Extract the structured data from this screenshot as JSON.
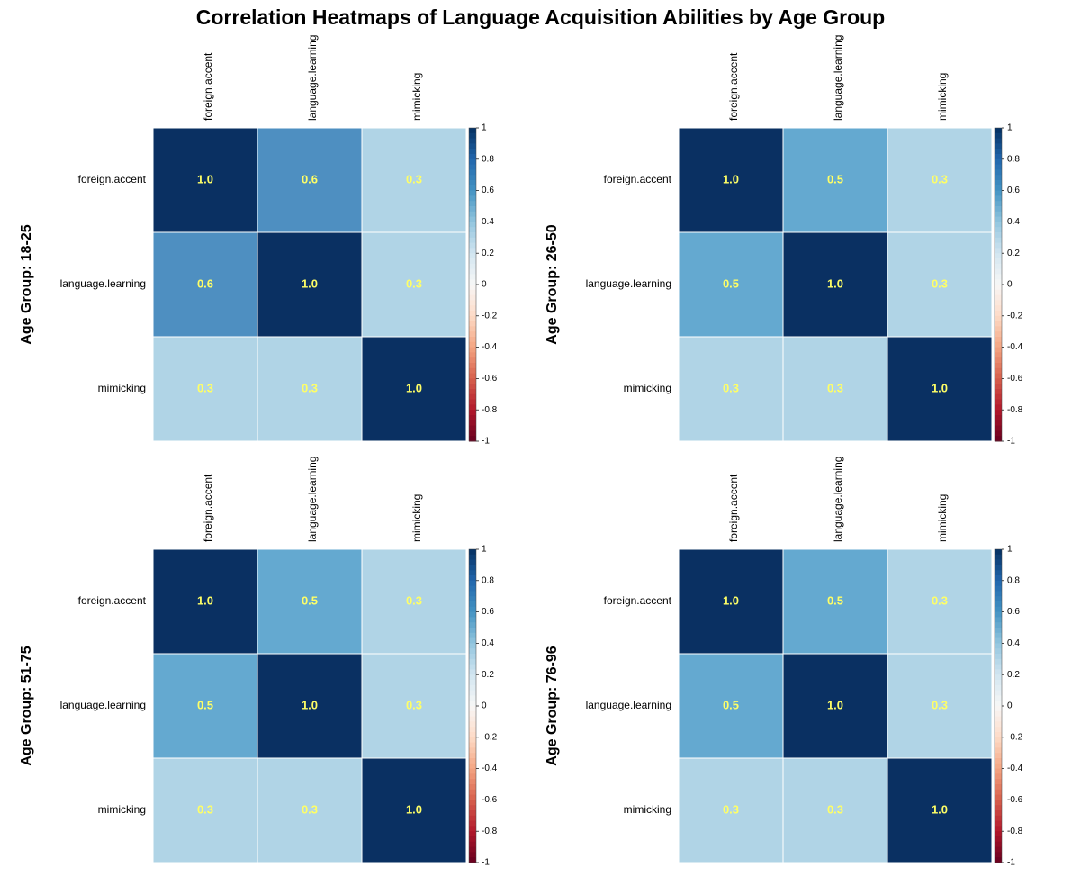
{
  "page": {
    "title": "Correlation Heatmaps of Language Acquisition Abilities by Age Group"
  },
  "colors": {
    "cell_1_0": "#0a3062",
    "cell_0_6": "#4e8fc1",
    "cell_0_5": "#64a9d0",
    "cell_0_3": "#b0d4e6",
    "value_text_high": "#ffff66",
    "value_text_low": "#ffff66",
    "grid_line": "#ffffff",
    "scale_stops": [
      "#67001f",
      "#b2182b",
      "#d6604d",
      "#f4a582",
      "#fddbc7",
      "#f7f7f7",
      "#d1e5f0",
      "#92c5de",
      "#4393c3",
      "#2166ac",
      "#053061"
    ]
  },
  "chart_data": [
    {
      "type": "heatmap",
      "title": "Age Group: 18-25",
      "variables": [
        "foreign.accent",
        "language.learning",
        "mimicking"
      ],
      "matrix": [
        [
          1.0,
          0.6,
          0.3
        ],
        [
          0.6,
          1.0,
          0.3
        ],
        [
          0.3,
          0.3,
          1.0
        ]
      ],
      "value_labels": [
        [
          "1.0",
          "0.6",
          "0.3"
        ],
        [
          "0.6",
          "1.0",
          "0.3"
        ],
        [
          "0.3",
          "0.3",
          "1.0"
        ]
      ],
      "colorbar_ticks": [
        "1",
        "0.8",
        "0.6",
        "0.4",
        "0.2",
        "0",
        "-0.2",
        "-0.4",
        "-0.6",
        "-0.8",
        "-1"
      ],
      "scale_range": [
        -1,
        1
      ]
    },
    {
      "type": "heatmap",
      "title": "Age Group: 26-50",
      "variables": [
        "foreign.accent",
        "language.learning",
        "mimicking"
      ],
      "matrix": [
        [
          1.0,
          0.5,
          0.3
        ],
        [
          0.5,
          1.0,
          0.3
        ],
        [
          0.3,
          0.3,
          1.0
        ]
      ],
      "value_labels": [
        [
          "1.0",
          "0.5",
          "0.3"
        ],
        [
          "0.5",
          "1.0",
          "0.3"
        ],
        [
          "0.3",
          "0.3",
          "1.0"
        ]
      ],
      "colorbar_ticks": [
        "1",
        "0.8",
        "0.6",
        "0.4",
        "0.2",
        "0",
        "-0.2",
        "-0.4",
        "-0.6",
        "-0.8",
        "-1"
      ],
      "scale_range": [
        -1,
        1
      ]
    },
    {
      "type": "heatmap",
      "title": "Age Group: 51-75",
      "variables": [
        "foreign.accent",
        "language.learning",
        "mimicking"
      ],
      "matrix": [
        [
          1.0,
          0.5,
          0.3
        ],
        [
          0.5,
          1.0,
          0.3
        ],
        [
          0.3,
          0.3,
          1.0
        ]
      ],
      "value_labels": [
        [
          "1.0",
          "0.5",
          "0.3"
        ],
        [
          "0.5",
          "1.0",
          "0.3"
        ],
        [
          "0.3",
          "0.3",
          "1.0"
        ]
      ],
      "colorbar_ticks": [
        "1",
        "0.8",
        "0.6",
        "0.4",
        "0.2",
        "0",
        "-0.2",
        "-0.4",
        "-0.6",
        "-0.8",
        "-1"
      ],
      "scale_range": [
        -1,
        1
      ]
    },
    {
      "type": "heatmap",
      "title": "Age Group: 76-96",
      "variables": [
        "foreign.accent",
        "language.learning",
        "mimicking"
      ],
      "matrix": [
        [
          1.0,
          0.5,
          0.3
        ],
        [
          0.5,
          1.0,
          0.3
        ],
        [
          0.3,
          0.3,
          1.0
        ]
      ],
      "value_labels": [
        [
          "1.0",
          "0.5",
          "0.3"
        ],
        [
          "0.5",
          "1.0",
          "0.3"
        ],
        [
          "0.3",
          "0.3",
          "1.0"
        ]
      ],
      "colorbar_ticks": [
        "1",
        "0.8",
        "0.6",
        "0.4",
        "0.2",
        "0",
        "-0.2",
        "-0.4",
        "-0.6",
        "-0.8",
        "-1"
      ],
      "scale_range": [
        -1,
        1
      ]
    }
  ]
}
